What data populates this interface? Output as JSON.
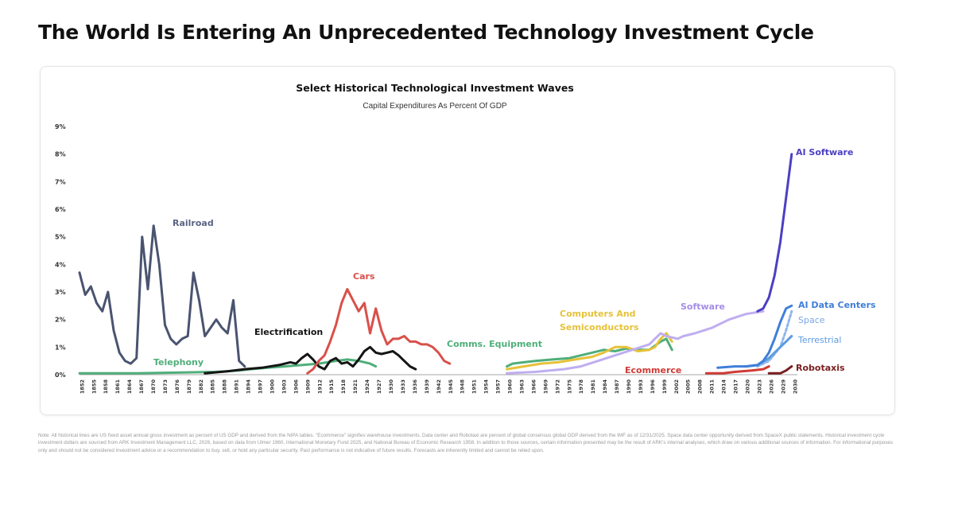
{
  "page": {
    "headline": "The World Is Entering An Unprecedented Technology Investment Cycle",
    "footnote": "Note: All historical lines are US fixed asset annual gross investment as percent of US GDP and derived from the NIPA tables. \"Ecommerce\" signifies warehouse investments. Data center and Robotaxi are percent of global consensus global GDP derived from the IMF as of 12/31/2025. Space data center opportunity derived from SpaceX public statements. Historical investment cycle investment dollars are sourced from ARK Investment Management LLC, 2026, based on data from Ulmer 1960, International Monetary Fund 2025, and National Bureau of Economic Research 1958. In addition to those sources, certain information presented may be the result of ARK's internal analyses, which draw on various additional sources of information. For informational purposes only and should not be considered investment advice or a recommendation to buy, sell, or hold any particular security. Past performance is not indicative of future results. Forecasts are inherently limited and cannot be relied upon."
  },
  "chart_data": {
    "type": "line",
    "title": "Select Historical Technological Investment Waves",
    "subtitle": "Capital Expenditures As Percent Of GDP",
    "xlabel": "",
    "ylabel": "",
    "ylim": [
      0,
      9
    ],
    "y_ticks": [
      "0%",
      "1%",
      "2%",
      "3%",
      "4%",
      "5%",
      "6%",
      "7%",
      "8%",
      "9%"
    ],
    "x_ticks": [
      "1852",
      "1855",
      "1858",
      "1861",
      "1864",
      "1867",
      "1870",
      "1873",
      "1876",
      "1879",
      "1882",
      "1885",
      "1888",
      "1891",
      "1894",
      "1897",
      "1900",
      "1903",
      "1906",
      "1909",
      "1912",
      "1915",
      "1918",
      "1921",
      "1924",
      "1927",
      "1930",
      "1933",
      "1936",
      "1939",
      "1942",
      "1945",
      "1948",
      "1951",
      "1954",
      "1957",
      "1960",
      "1963",
      "1966",
      "1969",
      "1972",
      "1975",
      "1978",
      "1981",
      "1984",
      "1987",
      "1990",
      "1993",
      "1996",
      "1999",
      "2002",
      "2005",
      "2008",
      "2011",
      "2014",
      "2017",
      "2020",
      "2023",
      "2026",
      "2029",
      "2030"
    ],
    "grid": false,
    "legend": "inline labels",
    "series": [
      {
        "name": "Railroad",
        "color": "#4a5470",
        "label_color": "#5b6484",
        "points": [
          [
            0,
            3.7
          ],
          [
            1,
            2.9
          ],
          [
            2,
            3.2
          ],
          [
            3,
            2.6
          ],
          [
            4,
            2.3
          ],
          [
            5,
            3.0
          ],
          [
            6,
            1.6
          ],
          [
            7,
            0.8
          ],
          [
            8,
            0.5
          ],
          [
            9,
            0.4
          ],
          [
            10,
            0.6
          ],
          [
            11,
            5.0
          ],
          [
            12,
            3.1
          ],
          [
            13,
            5.4
          ],
          [
            14,
            4.0
          ],
          [
            15,
            1.8
          ],
          [
            16,
            1.3
          ],
          [
            17,
            1.1
          ],
          [
            18,
            1.3
          ],
          [
            19,
            1.4
          ],
          [
            20,
            3.7
          ],
          [
            21,
            2.7
          ],
          [
            22,
            1.4
          ],
          [
            23,
            1.7
          ],
          [
            24,
            2.0
          ],
          [
            25,
            1.7
          ],
          [
            26,
            1.5
          ],
          [
            27,
            2.7
          ],
          [
            28,
            0.5
          ],
          [
            29,
            0.3
          ]
        ]
      },
      {
        "name": "Telephony",
        "color": "#4fae7a",
        "label_color": "#4fae7a",
        "points": [
          [
            0,
            0.05
          ],
          [
            10,
            0.05
          ],
          [
            18,
            0.08
          ],
          [
            24,
            0.1
          ],
          [
            28,
            0.15
          ],
          [
            30,
            0.2
          ],
          [
            33,
            0.25
          ],
          [
            36,
            0.3
          ],
          [
            39,
            0.35
          ],
          [
            42,
            0.4
          ],
          [
            45,
            0.5
          ],
          [
            47,
            0.55
          ],
          [
            49,
            0.5
          ],
          [
            51,
            0.4
          ],
          [
            52,
            0.3
          ]
        ]
      },
      {
        "name": "Electrification",
        "color": "#151515",
        "label_color": "#151515",
        "points": [
          [
            22,
            0.05
          ],
          [
            26,
            0.12
          ],
          [
            29,
            0.2
          ],
          [
            32,
            0.25
          ],
          [
            35,
            0.35
          ],
          [
            37,
            0.45
          ],
          [
            38,
            0.4
          ],
          [
            39,
            0.6
          ],
          [
            40,
            0.75
          ],
          [
            41,
            0.55
          ],
          [
            42,
            0.3
          ],
          [
            43,
            0.2
          ],
          [
            44,
            0.5
          ],
          [
            45,
            0.6
          ],
          [
            46,
            0.4
          ],
          [
            47,
            0.45
          ],
          [
            48,
            0.3
          ],
          [
            49,
            0.55
          ],
          [
            50,
            0.85
          ],
          [
            51,
            1.0
          ],
          [
            52,
            0.8
          ],
          [
            53,
            0.75
          ],
          [
            54,
            0.8
          ],
          [
            55,
            0.85
          ],
          [
            56,
            0.7
          ],
          [
            57,
            0.5
          ],
          [
            58,
            0.3
          ],
          [
            59,
            0.2
          ]
        ]
      },
      {
        "name": "Cars",
        "color": "#d9504a",
        "label_color": "#d9504a",
        "points": [
          [
            40,
            0.05
          ],
          [
            41,
            0.2
          ],
          [
            42,
            0.5
          ],
          [
            43,
            0.7
          ],
          [
            44,
            1.2
          ],
          [
            45,
            1.8
          ],
          [
            46,
            2.6
          ],
          [
            47,
            3.1
          ],
          [
            48,
            2.7
          ],
          [
            49,
            2.3
          ],
          [
            50,
            2.6
          ],
          [
            51,
            1.5
          ],
          [
            52,
            2.4
          ],
          [
            53,
            1.6
          ],
          [
            54,
            1.1
          ],
          [
            55,
            1.3
          ],
          [
            56,
            1.3
          ],
          [
            57,
            1.4
          ],
          [
            58,
            1.2
          ],
          [
            59,
            1.2
          ],
          [
            60,
            1.1
          ],
          [
            61,
            1.1
          ],
          [
            62,
            1.0
          ],
          [
            63,
            0.8
          ],
          [
            64,
            0.5
          ],
          [
            65,
            0.4
          ]
        ]
      },
      {
        "name": "Comms. Equipment",
        "color": "#4fae7a",
        "label_color": "#4fae7a",
        "points": [
          [
            75,
            0.3
          ],
          [
            76,
            0.4
          ],
          [
            78,
            0.45
          ],
          [
            80,
            0.5
          ],
          [
            83,
            0.55
          ],
          [
            86,
            0.6
          ],
          [
            88,
            0.7
          ],
          [
            90,
            0.8
          ],
          [
            92,
            0.9
          ],
          [
            94,
            0.85
          ],
          [
            96,
            0.95
          ],
          [
            98,
            0.9
          ],
          [
            100,
            0.9
          ],
          [
            102,
            1.2
          ],
          [
            103,
            1.3
          ],
          [
            104,
            0.9
          ]
        ]
      },
      {
        "name": "Computers And Semiconductors",
        "color": "#e6c23a",
        "label_color": "#e6c23a",
        "points": [
          [
            75,
            0.2
          ],
          [
            78,
            0.3
          ],
          [
            81,
            0.4
          ],
          [
            84,
            0.45
          ],
          [
            87,
            0.55
          ],
          [
            90,
            0.65
          ],
          [
            92,
            0.8
          ],
          [
            94,
            1.0
          ],
          [
            96,
            1.0
          ],
          [
            98,
            0.85
          ],
          [
            100,
            0.9
          ],
          [
            101,
            1.0
          ],
          [
            102,
            1.3
          ],
          [
            103,
            1.5
          ],
          [
            104,
            1.2
          ]
        ]
      },
      {
        "name": "Software",
        "color": "#bfaef0",
        "label_color": "#a58ee8",
        "points": [
          [
            75,
            0.05
          ],
          [
            80,
            0.1
          ],
          [
            85,
            0.2
          ],
          [
            88,
            0.3
          ],
          [
            91,
            0.5
          ],
          [
            94,
            0.7
          ],
          [
            97,
            0.9
          ],
          [
            100,
            1.1
          ],
          [
            101,
            1.3
          ],
          [
            102,
            1.5
          ],
          [
            103,
            1.4
          ],
          [
            105,
            1.3
          ],
          [
            106,
            1.4
          ],
          [
            108,
            1.5
          ],
          [
            111,
            1.7
          ],
          [
            114,
            2.0
          ],
          [
            117,
            2.2
          ],
          [
            120,
            2.3
          ]
        ]
      },
      {
        "name": "Ecommerce",
        "color": "#cf3b36",
        "label_color": "#cf3b36",
        "points": [
          [
            110,
            0.05
          ],
          [
            113,
            0.05
          ],
          [
            115,
            0.1
          ],
          [
            118,
            0.15
          ],
          [
            120,
            0.2
          ],
          [
            121,
            0.3
          ]
        ]
      },
      {
        "name": "AI Software",
        "color": "#4b3fc4",
        "label_color": "#4b3fc4",
        "points": [
          [
            119,
            2.3
          ],
          [
            120,
            2.4
          ],
          [
            121,
            2.8
          ],
          [
            122,
            3.6
          ],
          [
            123,
            4.8
          ],
          [
            124,
            6.4
          ],
          [
            125,
            8.0
          ]
        ]
      },
      {
        "name": "AI Data Centers",
        "color": "#3f7fd9",
        "label_color": "#3f7fd9",
        "points": [
          [
            112,
            0.25
          ],
          [
            115,
            0.3
          ],
          [
            117,
            0.3
          ],
          [
            119,
            0.35
          ],
          [
            120,
            0.5
          ],
          [
            121,
            0.8
          ],
          [
            122,
            1.3
          ],
          [
            123,
            1.9
          ],
          [
            124,
            2.4
          ],
          [
            125,
            2.5
          ]
        ]
      },
      {
        "name": "Space",
        "color": "#8fb6ec",
        "label_color": "#7aa6e6",
        "points": [
          [
            119,
            0.3
          ],
          [
            121,
            0.5
          ],
          [
            123,
            1.0
          ],
          [
            124,
            1.6
          ],
          [
            125,
            2.3
          ]
        ]
      },
      {
        "name": "Terrestrial",
        "color": "#5c9be0",
        "label_color": "#5c9be0",
        "points": [
          [
            117,
            0.3
          ],
          [
            119,
            0.35
          ],
          [
            121,
            0.6
          ],
          [
            123,
            1.0
          ],
          [
            124,
            1.2
          ],
          [
            125,
            1.4
          ]
        ]
      },
      {
        "name": "Robotaxis",
        "color": "#7a1f1f",
        "label_color": "#7a1f1f",
        "points": [
          [
            121,
            0.05
          ],
          [
            123,
            0.05
          ],
          [
            124,
            0.15
          ],
          [
            125,
            0.3
          ]
        ]
      }
    ],
    "x_index_max": 126
  }
}
